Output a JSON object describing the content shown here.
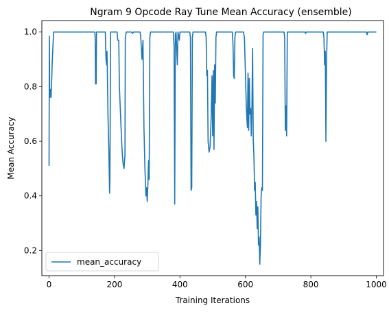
{
  "chart_data": {
    "type": "line",
    "title": "Ngram 9 Opcode Ray Tune Mean Accuracy (ensemble)",
    "xlabel": "Training Iterations",
    "ylabel": "Mean Accuracy",
    "xlim": [
      -22,
      1022
    ],
    "ylim": [
      0.108,
      1.042
    ],
    "xticks": [
      0,
      200,
      400,
      600,
      800,
      1000
    ],
    "yticks": [
      0.2,
      0.4,
      0.6,
      0.8,
      1.0
    ],
    "xtick_labels": [
      "0",
      "200",
      "400",
      "600",
      "800",
      "1000"
    ],
    "ytick_labels": [
      "0.2",
      "0.4",
      "0.6",
      "0.8",
      "1.0"
    ],
    "grid": false,
    "legend_position": "lower-left",
    "series": [
      {
        "name": "mean_accuracy",
        "color": "#1f77b4",
        "points": [
          [
            0,
            0.51
          ],
          [
            1,
            0.985
          ],
          [
            2,
            0.76
          ],
          [
            4,
            0.79
          ],
          [
            6,
            0.76
          ],
          [
            8,
            0.82
          ],
          [
            10,
            0.9
          ],
          [
            14,
            1.0
          ],
          [
            140,
            1.0
          ],
          [
            141,
            0.975
          ],
          [
            142,
            0.81
          ],
          [
            144,
            0.81
          ],
          [
            145,
            1.0
          ],
          [
            172,
            1.0
          ],
          [
            174,
            0.9
          ],
          [
            176,
            0.88
          ],
          [
            177,
            0.93
          ],
          [
            178,
            0.87
          ],
          [
            180,
            0.7
          ],
          [
            183,
            0.55
          ],
          [
            185,
            0.41
          ],
          [
            186,
            0.46
          ],
          [
            188,
            1.0
          ],
          [
            208,
            1.0
          ],
          [
            210,
            0.97
          ],
          [
            213,
            0.97
          ],
          [
            215,
            0.8
          ],
          [
            220,
            0.65
          ],
          [
            223,
            0.57
          ],
          [
            226,
            0.52
          ],
          [
            229,
            0.5
          ],
          [
            232,
            0.55
          ],
          [
            233,
            0.98
          ],
          [
            236,
            1.0
          ],
          [
            252,
            1.0
          ],
          [
            255,
            0.995
          ],
          [
            258,
            1.0
          ],
          [
            278,
            1.0
          ],
          [
            280,
            0.985
          ],
          [
            284,
            0.9
          ],
          [
            287,
            0.97
          ],
          [
            290,
            0.65
          ],
          [
            293,
            0.5
          ],
          [
            296,
            0.4
          ],
          [
            298,
            0.43
          ],
          [
            300,
            0.38
          ],
          [
            302,
            0.44
          ],
          [
            304,
            0.53
          ],
          [
            306,
            0.46
          ],
          [
            308,
            0.98
          ],
          [
            310,
            1.0
          ],
          [
            380,
            1.0
          ],
          [
            382,
            0.95
          ],
          [
            384,
            0.37
          ],
          [
            386,
            0.99
          ],
          [
            388,
            1.0
          ],
          [
            392,
            0.88
          ],
          [
            394,
            1.0
          ],
          [
            398,
            0.97
          ],
          [
            400,
            1.0
          ],
          [
            430,
            1.0
          ],
          [
            432,
            0.98
          ],
          [
            434,
            0.42
          ],
          [
            436,
            0.43
          ],
          [
            438,
            0.98
          ],
          [
            440,
            1.0
          ],
          [
            478,
            1.0
          ],
          [
            480,
            0.98
          ],
          [
            482,
            0.84
          ],
          [
            484,
            0.86
          ],
          [
            486,
            0.6
          ],
          [
            489,
            0.56
          ],
          [
            492,
            0.58
          ],
          [
            495,
            0.67
          ],
          [
            498,
            0.84
          ],
          [
            500,
            0.62
          ],
          [
            502,
            0.86
          ],
          [
            504,
            0.57
          ],
          [
            506,
            0.88
          ],
          [
            508,
            0.74
          ],
          [
            510,
            0.98
          ],
          [
            512,
            1.0
          ],
          [
            560,
            1.0
          ],
          [
            562,
            0.96
          ],
          [
            564,
            0.84
          ],
          [
            566,
            0.83
          ],
          [
            568,
            0.98
          ],
          [
            570,
            1.0
          ],
          [
            594,
            1.0
          ],
          [
            597,
            0.98
          ],
          [
            600,
            0.85
          ],
          [
            603,
            0.72
          ],
          [
            606,
            0.65
          ],
          [
            608,
            0.85
          ],
          [
            610,
            0.64
          ],
          [
            612,
            0.83
          ],
          [
            614,
            0.7
          ],
          [
            616,
            0.72
          ],
          [
            618,
            0.62
          ],
          [
            620,
            0.73
          ],
          [
            622,
            0.94
          ],
          [
            624,
            0.6
          ],
          [
            626,
            0.55
          ],
          [
            628,
            0.42
          ],
          [
            630,
            0.45
          ],
          [
            632,
            0.33
          ],
          [
            634,
            0.38
          ],
          [
            636,
            0.28
          ],
          [
            638,
            0.36
          ],
          [
            640,
            0.22
          ],
          [
            642,
            0.25
          ],
          [
            644,
            0.15
          ],
          [
            646,
            0.22
          ],
          [
            648,
            0.4
          ],
          [
            650,
            0.43
          ],
          [
            652,
            0.42
          ],
          [
            654,
            0.99
          ],
          [
            656,
            1.0
          ],
          [
            718,
            1.0
          ],
          [
            720,
            0.98
          ],
          [
            722,
            0.64
          ],
          [
            724,
            0.73
          ],
          [
            726,
            0.62
          ],
          [
            728,
            1.0
          ],
          [
            782,
            1.0
          ],
          [
            784,
            0.995
          ],
          [
            786,
            1.0
          ],
          [
            838,
            1.0
          ],
          [
            840,
            0.98
          ],
          [
            842,
            0.88
          ],
          [
            844,
            0.93
          ],
          [
            846,
            0.6
          ],
          [
            848,
            0.9
          ],
          [
            850,
            1.0
          ],
          [
            970,
            1.0
          ],
          [
            972,
            0.99
          ],
          [
            974,
            1.0
          ],
          [
            1000,
            1.0
          ]
        ]
      }
    ]
  }
}
